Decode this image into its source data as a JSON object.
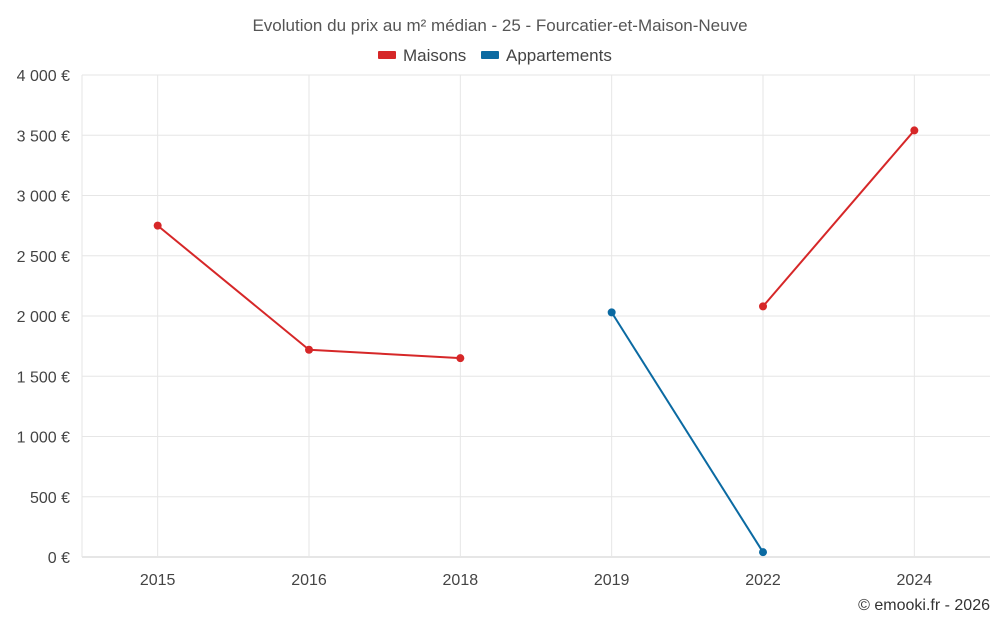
{
  "chart_data": {
    "type": "line",
    "title": "Evolution du prix au m² médian - 25 - Fourcatier-et-Maison-Neuve",
    "categories": [
      "2015",
      "2016",
      "2018",
      "2019",
      "2022",
      "2024"
    ],
    "ylim": [
      0,
      4000
    ],
    "yticks": [
      0,
      500,
      1000,
      1500,
      2000,
      2500,
      3000,
      3500,
      4000
    ],
    "ytick_labels": [
      "0 €",
      "500 €",
      "1 000 €",
      "1 500 €",
      "2 000 €",
      "2 500 €",
      "3 000 €",
      "3 500 €",
      "4 000 €"
    ],
    "grid": true,
    "legend_position": "top-center",
    "series": [
      {
        "name": "Maisons",
        "color": "#d62728",
        "values": [
          2750,
          1720,
          1650,
          null,
          2080,
          3540
        ]
      },
      {
        "name": "Appartements",
        "color": "#0b6aa2",
        "values": [
          null,
          null,
          null,
          2030,
          40,
          null
        ]
      }
    ],
    "credit": "© emooki.fr - 2026"
  }
}
